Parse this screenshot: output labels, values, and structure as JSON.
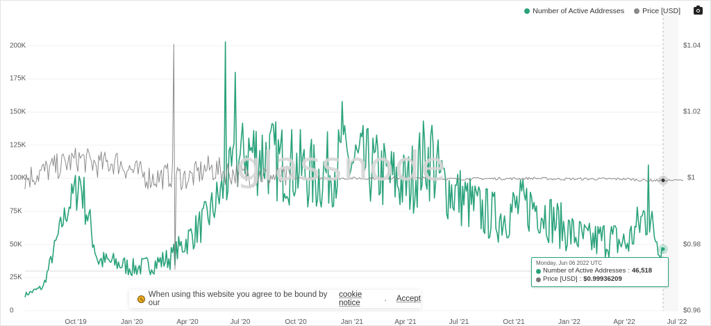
{
  "legend": {
    "series1_label": "Number of Active Addresses",
    "series2_label": "Price [USD]",
    "series1_color": "#2aa27b",
    "series2_color": "#8a8a8a",
    "camera_icon": "camera-icon"
  },
  "axes": {
    "left_ticks": [
      "0",
      "25K",
      "50K",
      "75K",
      "100K",
      "125K",
      "150K",
      "175K",
      "200K"
    ],
    "right_ticks": [
      "$0.96",
      "$0.98",
      "$1",
      "$1.02",
      "$1.04"
    ],
    "x_ticks": [
      "Oct '19",
      "Jan '20",
      "Apr '20",
      "Jul '20",
      "Oct '20",
      "Jan '21",
      "Apr '21",
      "Jul '21",
      "Oct '21",
      "Jan '22",
      "Apr '22",
      "Jul '22"
    ]
  },
  "watermark": "glassnode",
  "tooltip": {
    "date": "Monday, Jun 06 2022 UTC",
    "series1_label": "Number of Active Addresses",
    "series1_value": "46,518",
    "series2_label": "Price [USD]",
    "series2_value": "$0.99936209"
  },
  "cookie_banner": {
    "text": "When using this website you agree to be bound by our",
    "link_text": "cookie notice",
    "period": ".",
    "accept_label": "Accept"
  },
  "chart_data": {
    "type": "line",
    "title": "",
    "xlabel": "",
    "ylabel_left": "Number of Active Addresses",
    "ylabel_right": "Price [USD]",
    "ylim_left": [
      0,
      200000
    ],
    "ylim_right": [
      0.96,
      1.04
    ],
    "grid": true,
    "legend_position": "top-right",
    "x_range": [
      "Jul 2019",
      "Jul 2022"
    ],
    "x": [
      "2019-07",
      "2019-08",
      "2019-09",
      "2019-10",
      "2019-11",
      "2019-12",
      "2020-01",
      "2020-02",
      "2020-03",
      "2020-04",
      "2020-05",
      "2020-06",
      "2020-07",
      "2020-08",
      "2020-09",
      "2020-10",
      "2020-11",
      "2020-12",
      "2021-01",
      "2021-02",
      "2021-03",
      "2021-04",
      "2021-05",
      "2021-06",
      "2021-07",
      "2021-08",
      "2021-09",
      "2021-10",
      "2021-11",
      "2021-12",
      "2022-01",
      "2022-02",
      "2022-03",
      "2022-04",
      "2022-05",
      "2022-06"
    ],
    "series": [
      {
        "name": "Number of Active Addresses",
        "axis": "left",
        "color": "#2aa27b",
        "values": [
          12000,
          18000,
          65000,
          100000,
          38000,
          36000,
          32000,
          35000,
          40000,
          55000,
          70000,
          95000,
          120000,
          118000,
          112000,
          108000,
          100000,
          110000,
          112000,
          108000,
          100000,
          95000,
          118000,
          95000,
          85000,
          75000,
          70000,
          78000,
          80000,
          68000,
          58000,
          52000,
          55000,
          50000,
          72000,
          46518
        ],
        "peaks": [
          {
            "date": "2020-06-20",
            "value": 203000
          },
          {
            "date": "2020-07-10",
            "value": 180000
          },
          {
            "date": "2021-01-10",
            "value": 158000
          },
          {
            "date": "2021-05-10",
            "value": 140000
          },
          {
            "date": "2022-05-10",
            "value": 110000
          }
        ]
      },
      {
        "name": "Price [USD]",
        "axis": "right",
        "color": "#8a8a8a",
        "values": [
          1.0,
          1.002,
          1.004,
          1.006,
          1.004,
          1.005,
          1.002,
          1.0,
          1.001,
          1.0,
          1.003,
          1.002,
          1.001,
          1.001,
          1.0,
          1.0,
          1.0,
          1.0,
          1.0,
          1.0,
          1.0,
          1.0,
          1.0,
          0.9998,
          0.9998,
          0.9999,
          0.9999,
          0.9999,
          1.0,
          0.9998,
          0.9998,
          0.9998,
          0.9998,
          0.9998,
          0.9994,
          0.99936209
        ],
        "spikes": [
          {
            "date": "2020-03-12",
            "high": 1.0405,
            "low": 0.9725
          }
        ]
      }
    ],
    "crosshair": {
      "date": "2022-06-06",
      "active_addresses": 46518,
      "price": 0.99936209
    }
  }
}
